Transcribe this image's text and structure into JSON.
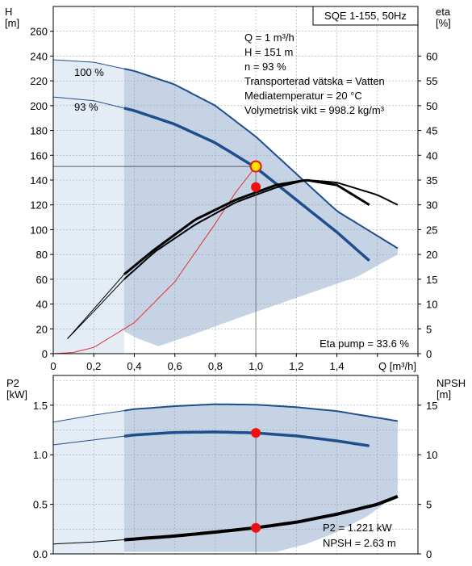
{
  "chart_data": [
    {
      "type": "line",
      "title": "SQE 1-155, 50Hz",
      "xlabel": "Q [m³/h]",
      "ylabel": "H\n[m]",
      "ylabel_right": "eta\n[%]",
      "xlim": [
        0,
        1.8
      ],
      "ylim": [
        0,
        280
      ],
      "ylim_right": [
        0,
        70
      ],
      "grid": true,
      "x_ticks": [
        0,
        0.2,
        0.4,
        0.6,
        0.8,
        1.0,
        1.2,
        1.4,
        1.6,
        1.8
      ],
      "x_tick_labels": [
        "0",
        "0,2",
        "0,4",
        "0,6",
        "0,8",
        "1,0",
        "1,2",
        "1,4",
        "",
        ""
      ],
      "y_tick_labels": [
        "0",
        "20",
        "40",
        "60",
        "80",
        "100",
        "120",
        "140",
        "160",
        "180",
        "200",
        "220",
        "240",
        "260"
      ],
      "y_tick_values": [
        0,
        20,
        40,
        60,
        80,
        100,
        120,
        140,
        160,
        180,
        200,
        220,
        240,
        260
      ],
      "y_right_tick_labels": [
        "0",
        "5",
        "10",
        "15",
        "20",
        "25",
        "30",
        "35",
        "40",
        "45",
        "50",
        "55",
        "60"
      ],
      "y_right_tick_values": [
        0,
        5,
        10,
        15,
        20,
        25,
        30,
        35,
        40,
        45,
        50,
        55,
        60
      ],
      "series": [
        {
          "name": "100 %",
          "axis": "left",
          "x": [
            0,
            0.2,
            0.4,
            0.6,
            0.8,
            1.0,
            1.2,
            1.4,
            1.6,
            1.7
          ],
          "y": [
            237,
            235,
            228,
            217,
            200,
            175,
            145,
            115,
            95,
            85
          ]
        },
        {
          "name": "93 %",
          "axis": "left",
          "x": [
            0,
            0.2,
            0.4,
            0.6,
            0.8,
            1.0,
            1.2,
            1.4,
            1.56
          ],
          "y": [
            207,
            204,
            196,
            185,
            170,
            150,
            124,
            98,
            75
          ]
        },
        {
          "axis": "right",
          "x": [
            0.07,
            0.2,
            0.35,
            0.5,
            0.7,
            0.9,
            1.1,
            1.25,
            1.4,
            1.56
          ],
          "y": [
            3,
            9,
            16,
            21,
            27,
            31,
            34,
            35,
            34,
            30
          ]
        },
        {
          "axis": "right",
          "x": [
            0.07,
            0.2,
            0.35,
            0.5,
            0.7,
            0.9,
            1.1,
            1.25,
            1.4,
            1.6,
            1.7
          ],
          "y": [
            3,
            8.5,
            15,
            20.5,
            26,
            30.5,
            33.5,
            35,
            34.5,
            32,
            30
          ]
        },
        {
          "axis": "left",
          "x": [
            0,
            0.1,
            0.2,
            0.4,
            0.6,
            0.8,
            0.9,
            1.0
          ],
          "y": [
            0,
            1,
            5,
            25,
            58,
            105,
            130,
            151
          ]
        }
      ],
      "duty_point": {
        "x": 1.0,
        "y": 151,
        "eta": 33.6
      },
      "info_text": [
        "Q = 1 m³/h",
        "H = 151 m",
        "n = 93 %",
        "Transporterad vätska = Vatten",
        "Mediatemperatur = 20 °C",
        "Volymetrisk vikt = 998.2 kg/m³"
      ],
      "eta_pump_label": "Eta pump = 33.6 %",
      "colors": {
        "curve": "#1f4e8c",
        "fill": "#c5d3e4",
        "fill_light": "#e4ecf6",
        "eta": "#000000",
        "system": "#e03030",
        "point_red": "#ee1111",
        "point_yellow": "#ffe600"
      }
    },
    {
      "type": "line",
      "xlabel": "",
      "ylabel": "P2\n[kW]",
      "ylabel_right": "NPSH\n[m]",
      "xlim": [
        0,
        1.8
      ],
      "ylim": [
        0,
        1.8
      ],
      "ylim_right": [
        0,
        18
      ],
      "grid": true,
      "y_tick_labels": [
        "0.0",
        "0.5",
        "1.0",
        "1.5"
      ],
      "y_tick_values": [
        0,
        0.5,
        1.0,
        1.5
      ],
      "y_right_tick_labels": [
        "0",
        "5",
        "10",
        "15"
      ],
      "y_right_tick_values": [
        0,
        5,
        10,
        15
      ],
      "series": [
        {
          "axis": "left",
          "x": [
            0,
            0.2,
            0.4,
            0.6,
            0.8,
            1.0,
            1.2,
            1.4,
            1.7
          ],
          "y": [
            1.33,
            1.4,
            1.46,
            1.49,
            1.51,
            1.505,
            1.48,
            1.44,
            1.34
          ]
        },
        {
          "axis": "left",
          "x": [
            0,
            0.2,
            0.4,
            0.6,
            0.8,
            1.0,
            1.2,
            1.4,
            1.56
          ],
          "y": [
            1.1,
            1.15,
            1.2,
            1.225,
            1.23,
            1.22,
            1.19,
            1.14,
            1.09
          ]
        },
        {
          "axis": "right",
          "x": [
            0,
            0.2,
            0.4,
            0.6,
            0.8,
            1.0,
            1.2,
            1.4,
            1.6,
            1.7
          ],
          "y": [
            1.0,
            1.2,
            1.5,
            1.8,
            2.2,
            2.63,
            3.2,
            4.0,
            5.0,
            5.8
          ]
        }
      ],
      "duty_point": {
        "x": 1.0,
        "p2": 1.221,
        "npsh": 2.63
      },
      "info_text": [
        "P2 = 1.221 kW",
        "NPSH = 2.63 m"
      ]
    }
  ]
}
